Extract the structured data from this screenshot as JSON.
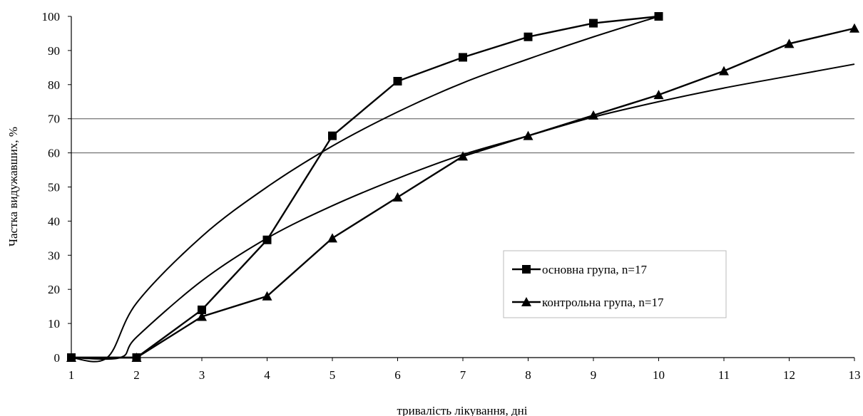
{
  "chart_data": {
    "type": "line",
    "title": "",
    "xlabel": "тривалість лікування, дні",
    "ylabel": "Частка видужавших, %",
    "x": [
      1,
      2,
      3,
      4,
      5,
      6,
      7,
      8,
      9,
      10,
      11,
      12,
      13
    ],
    "xlim": [
      1,
      13
    ],
    "ylim": [
      0,
      100
    ],
    "yticks": [
      0,
      10,
      20,
      30,
      40,
      50,
      60,
      70,
      80,
      90,
      100
    ],
    "xticks": [
      1,
      2,
      3,
      4,
      5,
      6,
      7,
      8,
      9,
      10,
      11,
      12,
      13
    ],
    "gridlines_y": [
      60,
      70
    ],
    "legend_position": "bottom-right",
    "series": [
      {
        "name": "основна група, n=17",
        "marker": "square",
        "color": "#000000",
        "x": [
          1,
          2,
          3,
          4,
          5,
          6,
          7,
          8,
          9,
          10
        ],
        "values": [
          0,
          0,
          14,
          34.5,
          65,
          81,
          88,
          94,
          98,
          100
        ]
      },
      {
        "name": "контрольна група, n=17",
        "marker": "triangle",
        "color": "#000000",
        "x": [
          1,
          2,
          3,
          4,
          5,
          6,
          7,
          8,
          9,
          10,
          11,
          12,
          13
        ],
        "values": [
          0,
          0,
          12,
          18,
          35,
          47,
          59,
          65,
          71,
          77,
          84,
          92,
          96.5
        ]
      }
    ],
    "trendlines": [
      {
        "for_series": "основна група, n=17",
        "x": [
          1,
          1.55,
          2,
          3,
          4,
          5,
          6,
          7,
          8,
          9,
          10
        ],
        "values": [
          0,
          0,
          16,
          35.5,
          50,
          62,
          72,
          80.5,
          87.5,
          94,
          100
        ]
      },
      {
        "for_series": "контрольна група, n=17",
        "x": [
          1,
          1.75,
          2,
          3,
          4,
          5,
          6,
          7,
          8,
          9,
          10,
          11,
          12,
          13
        ],
        "values": [
          0,
          0,
          6,
          22.5,
          35,
          44.5,
          52.5,
          59.5,
          65,
          70.5,
          75,
          79,
          82.5,
          86
        ]
      }
    ]
  }
}
